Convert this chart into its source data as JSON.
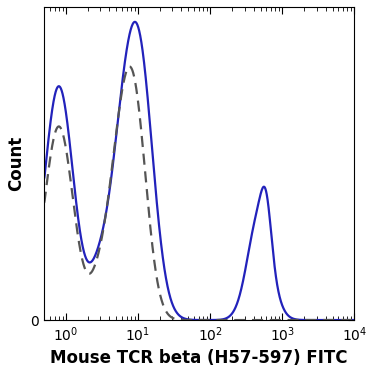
{
  "title": "",
  "xlabel": "Mouse TCR beta (H57-597) FITC",
  "ylabel": "Count",
  "xlim_log": [
    0.5,
    10000
  ],
  "ylim": [
    0,
    1.05
  ],
  "solid_color": "#2222bb",
  "dashed_color": "#555555",
  "background_color": "#ffffff",
  "solid_linewidth": 1.6,
  "dashed_linewidth": 1.6,
  "xlabel_fontsize": 12,
  "ylabel_fontsize": 12,
  "tick_fontsize": 10
}
